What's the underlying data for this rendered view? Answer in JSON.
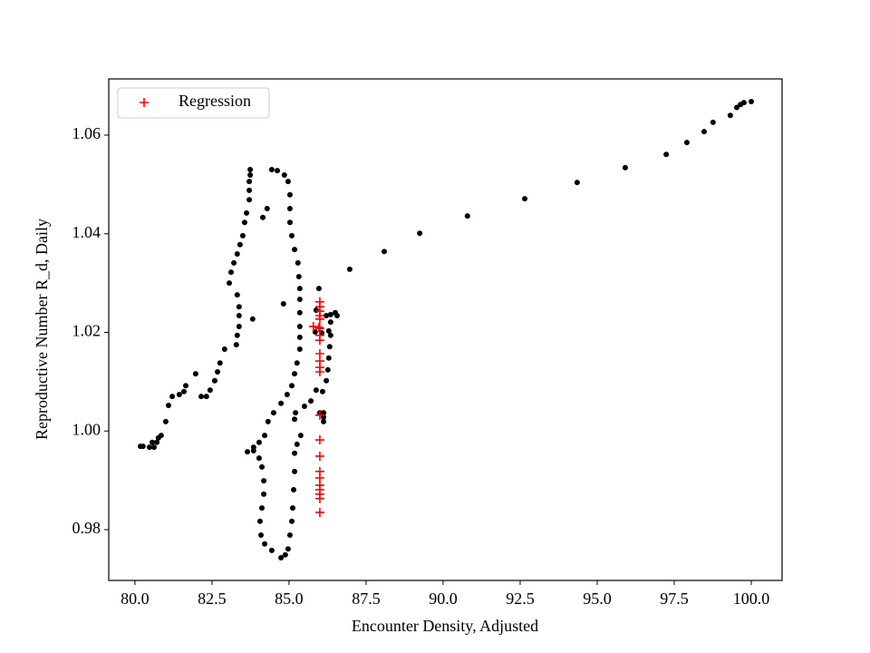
{
  "chart_data": {
    "type": "scatter",
    "xlabel": "Encounter Density, Adjusted",
    "ylabel": "Reproductive Number R_d, Daily",
    "xlim": [
      79.15,
      101.0
    ],
    "ylim": [
      0.9697,
      1.0714
    ],
    "xticks": [
      {
        "value": 80,
        "label": "80.0"
      },
      82.5,
      {
        "value": 85,
        "label": "85.0"
      },
      87.5,
      {
        "value": 90,
        "label": "90.0"
      },
      92.5,
      {
        "value": 95,
        "label": "95.0"
      },
      97.5,
      {
        "value": 100,
        "label": "100.0"
      }
    ],
    "yticks": [
      0.98,
      {
        "value": 1,
        "label": "1.00"
      },
      1.02,
      1.04,
      1.06
    ],
    "legend": "upper left",
    "series": [
      {
        "color": "#000000",
        "marker": "dot",
        "x": [
          100.0,
          99.76,
          99.65,
          99.53,
          99.32,
          98.76,
          98.47,
          97.91,
          97.24,
          95.91,
          94.35,
          92.65,
          90.79,
          89.24,
          88.09,
          86.97,
          86.35,
          86.5,
          86.56,
          86.21,
          86.35,
          86.29,
          86.06,
          85.85,
          86.35,
          86.32,
          86.29,
          86.26,
          86.21,
          85.97,
          85.88,
          86.09,
          85.88,
          85.71,
          86.12,
          86.12,
          86.12,
          86.0,
          85.5,
          85.21,
          85.18,
          85.38,
          85.26,
          85.18,
          85.18,
          85.15,
          85.12,
          85.09,
          85.03,
          84.97,
          84.88,
          84.74,
          84.44,
          84.21,
          84.09,
          84.06,
          84.12,
          84.18,
          84.18,
          84.12,
          84.03,
          83.85,
          83.65,
          83.85,
          84.03,
          84.21,
          84.32,
          84.5,
          84.74,
          84.94,
          85.09,
          85.18,
          85.26,
          85.35,
          85.35,
          85.35,
          85.35,
          85.35,
          85.35,
          85.32,
          85.29,
          85.18,
          85.09,
          85.03,
          85.03,
          85.03,
          84.97,
          84.85,
          84.62,
          84.44,
          84.82,
          84.29,
          84.15,
          83.82,
          83.74,
          83.74,
          83.71,
          83.71,
          83.71,
          83.62,
          83.56,
          83.5,
          83.41,
          83.32,
          83.21,
          83.12,
          83.06,
          83.32,
          83.38,
          83.38,
          83.38,
          83.32,
          83.29,
          82.91,
          82.76,
          82.68,
          82.59,
          82.44,
          82.32,
          82.15,
          81.97,
          81.65,
          81.59,
          81.44,
          81.21,
          81.09,
          81.0,
          80.85,
          80.76,
          80.62,
          80.47,
          80.26,
          80.18,
          80.56,
          80.71
        ],
        "values": [
          1.0668,
          1.0666,
          1.0662,
          1.0656,
          1.064,
          1.0626,
          1.0607,
          1.0585,
          1.0561,
          1.0534,
          1.0504,
          1.0471,
          1.0436,
          1.0401,
          1.0364,
          1.0328,
          1.0236,
          1.024,
          1.0234,
          1.0234,
          1.0221,
          1.0203,
          1.0199,
          1.0201,
          1.0194,
          1.0171,
          1.0148,
          1.0124,
          1.0102,
          1.0289,
          1.0245,
          1.008,
          1.0083,
          1.0061,
          1.0037,
          1.0028,
          1.0019,
          1.0037,
          1.005,
          1.0037,
          1.0024,
          0.9991,
          0.9973,
          0.9955,
          0.9918,
          0.9881,
          0.9844,
          0.9817,
          0.9789,
          0.9761,
          0.9749,
          0.9743,
          0.9758,
          0.9771,
          0.9789,
          0.9817,
          0.9844,
          0.9872,
          0.9899,
          0.9927,
          0.9945,
          0.996,
          0.9958,
          0.9967,
          0.9977,
          0.9991,
          1.0019,
          1.0037,
          1.0056,
          1.0074,
          1.0092,
          1.0116,
          1.0138,
          1.0166,
          1.019,
          1.0212,
          1.024,
          1.0267,
          1.0289,
          1.0313,
          1.0341,
          1.0368,
          1.0396,
          1.0423,
          1.0451,
          1.0479,
          1.0506,
          1.0519,
          1.0528,
          1.053,
          1.0258,
          1.0451,
          1.0433,
          1.0227,
          1.053,
          1.0519,
          1.0506,
          1.0488,
          1.0469,
          1.0442,
          1.0423,
          1.0396,
          1.0378,
          1.0359,
          1.0341,
          1.0322,
          1.03,
          1.0276,
          1.0252,
          1.0234,
          1.0212,
          1.0194,
          1.0175,
          1.0166,
          1.0138,
          1.012,
          1.0102,
          1.0083,
          1.007,
          1.007,
          1.0116,
          1.0092,
          1.008,
          1.0074,
          1.007,
          1.0052,
          1.0019,
          0.9991,
          0.9986,
          0.9967,
          0.9967,
          0.9969,
          0.9969,
          0.9977,
          0.9977
        ]
      },
      {
        "name": "Regression",
        "color": "#ff0000",
        "marker": "plus",
        "x": [
          86.0,
          86.0,
          86.0,
          86.0,
          86.0,
          86.0,
          86.0,
          86.0,
          86.0,
          86.0,
          86.0,
          86.0,
          86.0,
          86.0,
          86.0,
          86.0,
          86.0,
          86.0,
          86.0,
          86.0,
          86.0,
          86.0,
          85.79,
          85.97
        ],
        "values": [
          1.0262,
          1.0252,
          1.0243,
          1.0234,
          1.0227,
          1.0208,
          1.0194,
          1.0184,
          1.0157,
          1.0142,
          1.0129,
          1.012,
          1.0032,
          0.9982,
          0.9949,
          0.9918,
          0.9905,
          0.989,
          0.9881,
          0.9872,
          0.9863,
          0.9835,
          1.0212,
          1.021
        ]
      }
    ]
  }
}
